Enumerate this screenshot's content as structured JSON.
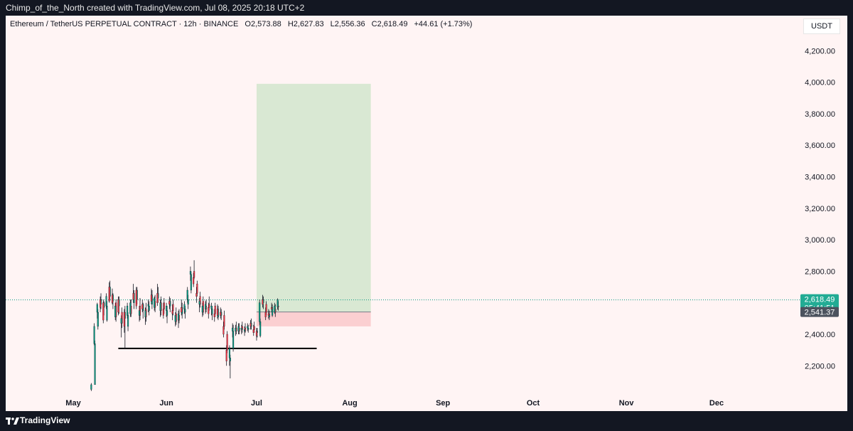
{
  "header": {
    "credit": "Chimp_of_the_North created with TradingView.com, Jul 08, 2025 20:18 UTC+2"
  },
  "symbol": {
    "name": "Ethereum / TetherUS PERPETUAL CONTRACT · 12h · BINANCE",
    "open": "O2,573.88",
    "high": "H2,627.83",
    "low": "L2,556.36",
    "close": "C2,618.49",
    "change": "+44.61 (+1.73%)"
  },
  "currency": "USDT",
  "footer": {
    "brand": "TradingView"
  },
  "colors": {
    "up": "#089981",
    "down": "#f23645",
    "profit_zone": "#d9e8d3",
    "loss_zone": "#fbcfd1",
    "current_price_label": "#22ab94",
    "entry_label": "#4c525e"
  },
  "chart_data": {
    "type": "candlestick",
    "interval": "12h",
    "x_axis_labels": [
      "May",
      "Jun",
      "Jul",
      "Aug",
      "Sep",
      "Oct",
      "Nov",
      "Dec"
    ],
    "x_axis_dates": [
      "2025-05-01",
      "2025-06-01",
      "2025-07-01",
      "2025-08-01",
      "2025-09-01",
      "2025-10-01",
      "2025-11-01",
      "2025-12-01"
    ],
    "y_axis_ticks": [
      "2,200.00",
      "2,400.00",
      "2,600.00",
      "2,800.00",
      "3,000.00",
      "3,200.00",
      "3,400.00",
      "3,600.00",
      "3,800.00",
      "4,000.00",
      "4,200.00"
    ],
    "y_axis_tick_values": [
      2200,
      2400,
      2600,
      2800,
      3000,
      3200,
      3400,
      3600,
      3800,
      4000,
      4200
    ],
    "ylim": [
      2040,
      4330
    ],
    "last_price": 2618.49,
    "last_price_label": "2,618.49",
    "countdown_label": "05:41:51",
    "entry_price": 2541.37,
    "entry_price_label": "2,541.37",
    "position": {
      "type": "long",
      "start": "2025-07-01",
      "end": "2025-08-08",
      "entry": 2541.37,
      "target": 3990,
      "stop": 2450
    },
    "support_line": {
      "start": "2025-05-16",
      "end": "2025-07-21",
      "price": 2310
    },
    "candles": [
      [
        "2025-05-07",
        2050,
        2090,
        2040,
        2080
      ],
      [
        "2025-05-08",
        2080,
        2360,
        2080,
        2340
      ],
      [
        "2025-05-08",
        2340,
        2470,
        2330,
        2450
      ],
      [
        "2025-05-09",
        2450,
        2560,
        2430,
        2540
      ],
      [
        "2025-05-09",
        2540,
        2600,
        2500,
        2590
      ],
      [
        "2025-05-10",
        2590,
        2660,
        2560,
        2620
      ],
      [
        "2025-05-10",
        2620,
        2640,
        2540,
        2570
      ],
      [
        "2025-05-11",
        2570,
        2610,
        2520,
        2600
      ],
      [
        "2025-05-11",
        2600,
        2620,
        2470,
        2490
      ],
      [
        "2025-05-12",
        2490,
        2610,
        2480,
        2580
      ],
      [
        "2025-05-12",
        2580,
        2660,
        2560,
        2640
      ],
      [
        "2025-05-13",
        2640,
        2740,
        2620,
        2700
      ],
      [
        "2025-05-13",
        2700,
        2730,
        2600,
        2610
      ],
      [
        "2025-05-14",
        2610,
        2660,
        2560,
        2650
      ],
      [
        "2025-05-14",
        2650,
        2690,
        2590,
        2600
      ],
      [
        "2025-05-15",
        2600,
        2620,
        2480,
        2510
      ],
      [
        "2025-05-15",
        2510,
        2600,
        2490,
        2580
      ],
      [
        "2025-05-16",
        2580,
        2640,
        2530,
        2620
      ],
      [
        "2025-05-16",
        2620,
        2640,
        2520,
        2540
      ],
      [
        "2025-05-17",
        2540,
        2570,
        2440,
        2470
      ],
      [
        "2025-05-17",
        2470,
        2520,
        2380,
        2500
      ],
      [
        "2025-05-18",
        2500,
        2580,
        2310,
        2540
      ],
      [
        "2025-05-18",
        2540,
        2560,
        2410,
        2450
      ],
      [
        "2025-05-19",
        2450,
        2540,
        2420,
        2520
      ],
      [
        "2025-05-19",
        2520,
        2600,
        2500,
        2580
      ],
      [
        "2025-05-20",
        2580,
        2620,
        2510,
        2530
      ],
      [
        "2025-05-20",
        2530,
        2620,
        2510,
        2600
      ],
      [
        "2025-05-21",
        2600,
        2680,
        2560,
        2660
      ],
      [
        "2025-05-21",
        2660,
        2720,
        2600,
        2620
      ],
      [
        "2025-05-22",
        2620,
        2700,
        2590,
        2680
      ],
      [
        "2025-05-22",
        2680,
        2700,
        2560,
        2580
      ],
      [
        "2025-05-23",
        2580,
        2630,
        2490,
        2520
      ],
      [
        "2025-05-23",
        2520,
        2580,
        2480,
        2550
      ],
      [
        "2025-05-24",
        2550,
        2600,
        2500,
        2590
      ],
      [
        "2025-05-24",
        2590,
        2620,
        2540,
        2560
      ],
      [
        "2025-05-25",
        2560,
        2600,
        2480,
        2510
      ],
      [
        "2025-05-25",
        2510,
        2570,
        2460,
        2550
      ],
      [
        "2025-05-26",
        2550,
        2610,
        2520,
        2580
      ],
      [
        "2025-05-26",
        2580,
        2620,
        2540,
        2590
      ],
      [
        "2025-05-27",
        2590,
        2680,
        2560,
        2650
      ],
      [
        "2025-05-27",
        2650,
        2690,
        2590,
        2610
      ],
      [
        "2025-05-28",
        2610,
        2650,
        2540,
        2570
      ],
      [
        "2025-05-28",
        2570,
        2640,
        2550,
        2630
      ],
      [
        "2025-05-29",
        2630,
        2700,
        2600,
        2660
      ],
      [
        "2025-05-29",
        2660,
        2720,
        2580,
        2600
      ],
      [
        "2025-05-30",
        2600,
        2640,
        2520,
        2550
      ],
      [
        "2025-05-30",
        2550,
        2620,
        2510,
        2600
      ],
      [
        "2025-05-31",
        2600,
        2630,
        2530,
        2560
      ],
      [
        "2025-05-31",
        2560,
        2600,
        2500,
        2520
      ],
      [
        "2025-06-01",
        2520,
        2580,
        2470,
        2550
      ],
      [
        "2025-06-01",
        2550,
        2600,
        2510,
        2580
      ],
      [
        "2025-06-02",
        2580,
        2630,
        2540,
        2610
      ],
      [
        "2025-06-02",
        2610,
        2640,
        2560,
        2590
      ],
      [
        "2025-06-03",
        2590,
        2620,
        2520,
        2550
      ],
      [
        "2025-06-03",
        2550,
        2590,
        2490,
        2530
      ],
      [
        "2025-06-04",
        2530,
        2570,
        2460,
        2480
      ],
      [
        "2025-06-04",
        2480,
        2540,
        2450,
        2520
      ],
      [
        "2025-06-05",
        2520,
        2560,
        2470,
        2490
      ],
      [
        "2025-06-05",
        2490,
        2550,
        2440,
        2530
      ],
      [
        "2025-06-06",
        2530,
        2600,
        2500,
        2570
      ],
      [
        "2025-06-06",
        2570,
        2620,
        2520,
        2540
      ],
      [
        "2025-06-07",
        2540,
        2580,
        2500,
        2560
      ],
      [
        "2025-06-07",
        2560,
        2610,
        2530,
        2590
      ],
      [
        "2025-06-08",
        2590,
        2650,
        2560,
        2620
      ],
      [
        "2025-06-08",
        2620,
        2700,
        2600,
        2680
      ],
      [
        "2025-06-09",
        2680,
        2800,
        2660,
        2780
      ],
      [
        "2025-06-09",
        2780,
        2830,
        2740,
        2800
      ],
      [
        "2025-06-10",
        2800,
        2870,
        2750,
        2760
      ],
      [
        "2025-06-10",
        2760,
        2790,
        2700,
        2720
      ],
      [
        "2025-06-11",
        2720,
        2740,
        2640,
        2660
      ],
      [
        "2025-06-11",
        2660,
        2700,
        2600,
        2640
      ],
      [
        "2025-06-12",
        2640,
        2670,
        2570,
        2590
      ],
      [
        "2025-06-12",
        2590,
        2630,
        2540,
        2610
      ],
      [
        "2025-06-13",
        2610,
        2640,
        2520,
        2540
      ],
      [
        "2025-06-13",
        2540,
        2600,
        2510,
        2580
      ],
      [
        "2025-06-14",
        2580,
        2620,
        2540,
        2560
      ],
      [
        "2025-06-14",
        2560,
        2610,
        2530,
        2590
      ],
      [
        "2025-06-15",
        2590,
        2640,
        2550,
        2570
      ],
      [
        "2025-06-15",
        2570,
        2600,
        2500,
        2530
      ],
      [
        "2025-06-16",
        2530,
        2580,
        2490,
        2560
      ],
      [
        "2025-06-16",
        2560,
        2600,
        2520,
        2580
      ],
      [
        "2025-06-17",
        2580,
        2600,
        2510,
        2530
      ],
      [
        "2025-06-17",
        2530,
        2560,
        2480,
        2510
      ],
      [
        "2025-06-18",
        2510,
        2580,
        2490,
        2560
      ],
      [
        "2025-06-18",
        2560,
        2590,
        2500,
        2520
      ],
      [
        "2025-06-19",
        2520,
        2560,
        2490,
        2540
      ],
      [
        "2025-06-19",
        2540,
        2570,
        2500,
        2520
      ],
      [
        "2025-06-20",
        2520,
        2550,
        2430,
        2450
      ],
      [
        "2025-06-20",
        2450,
        2480,
        2380,
        2400
      ],
      [
        "2025-06-21",
        2400,
        2420,
        2280,
        2300
      ],
      [
        "2025-06-21",
        2300,
        2330,
        2200,
        2230
      ],
      [
        "2025-06-22",
        2230,
        2270,
        2120,
        2250
      ],
      [
        "2025-06-22",
        2250,
        2330,
        2200,
        2310
      ],
      [
        "2025-06-23",
        2310,
        2460,
        2290,
        2420
      ],
      [
        "2025-06-23",
        2420,
        2470,
        2380,
        2440
      ],
      [
        "2025-06-24",
        2440,
        2480,
        2400,
        2420
      ],
      [
        "2025-06-24",
        2420,
        2460,
        2390,
        2440
      ],
      [
        "2025-06-25",
        2440,
        2470,
        2400,
        2420
      ],
      [
        "2025-06-25",
        2420,
        2470,
        2400,
        2450
      ],
      [
        "2025-06-26",
        2450,
        2480,
        2410,
        2430
      ],
      [
        "2025-06-26",
        2430,
        2460,
        2400,
        2440
      ],
      [
        "2025-06-27",
        2440,
        2470,
        2410,
        2420
      ],
      [
        "2025-06-27",
        2420,
        2450,
        2390,
        2430
      ],
      [
        "2025-06-28",
        2430,
        2460,
        2410,
        2440
      ],
      [
        "2025-06-28",
        2440,
        2470,
        2420,
        2450
      ],
      [
        "2025-06-29",
        2450,
        2500,
        2430,
        2470
      ],
      [
        "2025-06-29",
        2470,
        2490,
        2430,
        2450
      ],
      [
        "2025-06-30",
        2450,
        2480,
        2410,
        2430
      ],
      [
        "2025-06-30",
        2430,
        2460,
        2390,
        2410
      ],
      [
        "2025-07-01",
        2410,
        2440,
        2380,
        2420
      ],
      [
        "2025-07-01",
        2420,
        2440,
        2360,
        2390
      ],
      [
        "2025-07-02",
        2390,
        2500,
        2380,
        2480
      ],
      [
        "2025-07-02",
        2480,
        2620,
        2460,
        2600
      ],
      [
        "2025-07-03",
        2600,
        2640,
        2560,
        2620
      ],
      [
        "2025-07-03",
        2620,
        2650,
        2570,
        2590
      ],
      [
        "2025-07-04",
        2590,
        2610,
        2520,
        2540
      ],
      [
        "2025-07-04",
        2540,
        2570,
        2490,
        2510
      ],
      [
        "2025-07-05",
        2510,
        2550,
        2490,
        2530
      ],
      [
        "2025-07-05",
        2530,
        2560,
        2500,
        2520
      ],
      [
        "2025-07-06",
        2520,
        2590,
        2510,
        2570
      ],
      [
        "2025-07-06",
        2570,
        2600,
        2540,
        2560
      ],
      [
        "2025-07-07",
        2560,
        2590,
        2510,
        2540
      ],
      [
        "2025-07-07",
        2540,
        2600,
        2530,
        2580
      ],
      [
        "2025-07-08",
        2580,
        2610,
        2550,
        2574
      ],
      [
        "2025-07-08",
        2573.88,
        2627.83,
        2556.36,
        2618.49
      ]
    ]
  }
}
